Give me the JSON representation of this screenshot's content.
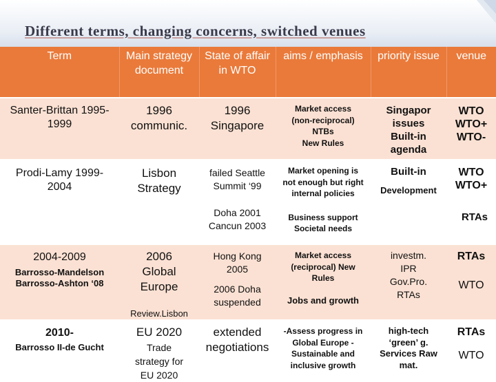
{
  "title": "Different terms, changing concerns, switched venues",
  "headers": {
    "term": "Term",
    "doc": "Main strategy document",
    "state": "State of affair in WTO",
    "aims": "aims / emphasis",
    "priority": "priority issue",
    "venue": "venue"
  },
  "rows": [
    {
      "term": "Santer-Brittan 1995-1999",
      "doc": "1996 communic.",
      "state": "1996 Singapore",
      "aims": [
        "Market access",
        "(non-reciprocal)",
        "NTBs",
        "New Rules"
      ],
      "priority": "Singapor issues Built-in agenda",
      "venue": [
        "WTO",
        "WTO+",
        "WTO-"
      ]
    },
    {
      "term": "Prodi-Lamy 1999-2004",
      "doc": "Lisbon Strategy",
      "state_a": "failed Seattle Summit ‘99",
      "state_b": "Doha 2001 Cancun 2003",
      "aims_a": "Market opening is not enough but right internal policies",
      "aims_b": "Business support Societal needs",
      "priority_a": "Built-in",
      "priority_b": "Development",
      "venue_a": [
        "WTO",
        "WTO+"
      ],
      "venue_b": "RTAs"
    },
    {
      "term_a": "2004-2009",
      "term_b": [
        "Barrosso-Mandelson",
        "Barrosso-Ashton ‘08"
      ],
      "doc_a": "2006 Global Europe",
      "doc_b": "Review.Lisbon",
      "state_a": "Hong Kong 2005",
      "state_b": "2006 Doha suspended",
      "aims_a": "Market access (reciprocal) New Rules",
      "aims_b": "Jobs and growth",
      "priority": "investm. IPR Gov.Pro. RTAs",
      "venue_a": "RTAs",
      "venue_b": "WTO"
    },
    {
      "term_a": "2010-",
      "term_b": "Barrosso II-de Gucht",
      "doc_a": "EU 2020",
      "doc_b": "Trade strategy for EU 2020",
      "state": "extended negotiations",
      "aims": "-Assess progress in Global Europe -Sustainable and inclusive growth",
      "priority": "high-tech ‘green’ g. Services Raw mat.",
      "venue_a": "RTAs",
      "venue_b": "WTO"
    }
  ]
}
